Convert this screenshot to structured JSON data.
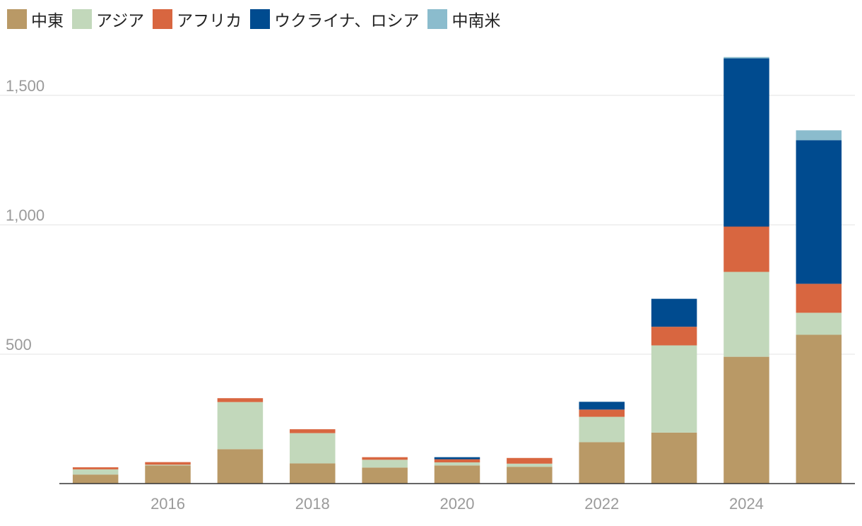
{
  "legend": {
    "items": [
      {
        "label": "中東",
        "color": "#b99966"
      },
      {
        "label": "アジア",
        "color": "#c2d8bb"
      },
      {
        "label": "アフリカ",
        "color": "#d86640"
      },
      {
        "label": "ウクライナ、ロシア",
        "color": "#004b8f"
      },
      {
        "label": "中南米",
        "color": "#8bbccd"
      }
    ]
  },
  "chart_data": {
    "type": "bar",
    "stacked": true,
    "categories": [
      "2015",
      "2016",
      "2017",
      "2018",
      "2019",
      "2020",
      "2021",
      "2022",
      "2023",
      "2024",
      "2025"
    ],
    "x_tick_labels": [
      "2016",
      "2018",
      "2020",
      "2022",
      "2024"
    ],
    "y_ticks": [
      500,
      1000,
      1500
    ],
    "y_tick_labels": [
      "500",
      "1,000",
      "1,500"
    ],
    "ylim": [
      0,
      1650
    ],
    "grid": true,
    "legend_position": "top-left",
    "series": [
      {
        "name": "中東",
        "color": "#b99966",
        "values": [
          35,
          70,
          133,
          78,
          62,
          70,
          65,
          160,
          197,
          490,
          575
        ]
      },
      {
        "name": "アジア",
        "color": "#c2d8bb",
        "values": [
          20,
          3,
          182,
          117,
          30,
          12,
          12,
          98,
          337,
          328,
          85
        ]
      },
      {
        "name": "アフリカ",
        "color": "#d86640",
        "values": [
          8,
          10,
          15,
          15,
          10,
          12,
          22,
          28,
          72,
          175,
          112
        ]
      },
      {
        "name": "ウクライナ、ロシア",
        "color": "#004b8f",
        "values": [
          0,
          0,
          0,
          0,
          0,
          8,
          0,
          30,
          108,
          650,
          555
        ]
      },
      {
        "name": "中南米",
        "color": "#8bbccd",
        "values": [
          0,
          0,
          0,
          0,
          0,
          0,
          0,
          0,
          0,
          5,
          38
        ]
      }
    ]
  }
}
